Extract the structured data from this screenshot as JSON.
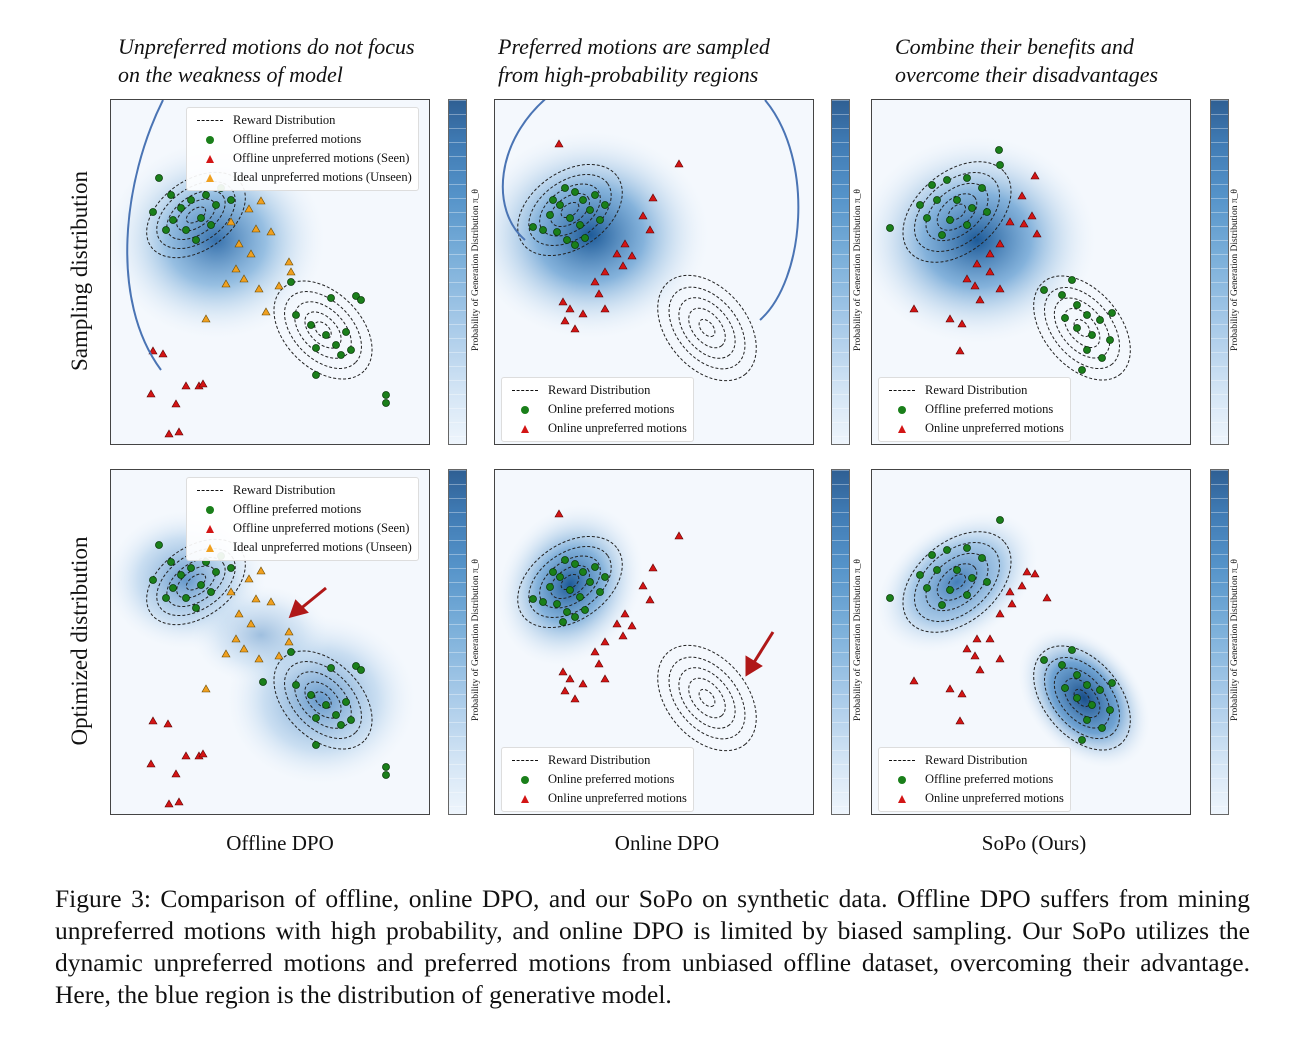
{
  "annotations": {
    "col1": [
      "Unpreferred motions do not focus",
      "on the weakness of model"
    ],
    "col2": [
      "Preferred motions are sampled",
      "from high-probability regions"
    ],
    "col3": [
      "Combine their benefits and",
      "overcome their disadvantages"
    ]
  },
  "row_labels": {
    "top": "Sampling distribution",
    "bottom": "Optimized distribution"
  },
  "col_labels": [
    "Offline DPO",
    "Online DPO",
    "SoPo (Ours)"
  ],
  "colorbar_label": "Probability of Generation Distribution π_θ",
  "legends": {
    "offline": [
      "Reward Distribution",
      "Offline preferred motions",
      "Offline unpreferred motions (Seen)",
      "Ideal unpreferred motions (Unseen)"
    ],
    "online": [
      "Reward Distribution",
      "Online preferred motions",
      "Online unpreferred motions"
    ],
    "sopo": [
      "Reward Distribution",
      "Offline preferred motions",
      "Online unpreferred motions"
    ]
  },
  "caption": "Figure 3: Comparison of offline, online DPO, and our SoPo on synthetic data. Offline DPO suffers from mining unpreferred motions with high probability, and online DPO is limited by biased sampling. Our SoPo utilizes the dynamic unpreferred motions and preferred motions from unbiased offline dataset, overcoming their advantage. Here, the blue region is the distribution of generative model.",
  "colors": {
    "preferred": "#1a7f1a",
    "unpreferred": "#d31515",
    "ideal_unpreferred": "#f0a020",
    "arrow_red": "#b01818",
    "arrow_blue": "#4a74b4"
  }
}
